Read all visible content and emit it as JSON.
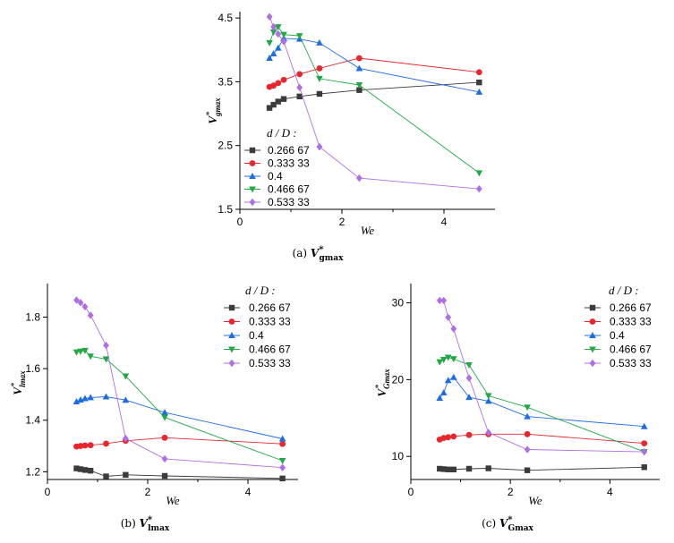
{
  "colors": {
    "s1": "#3b3b3b",
    "s2": "#e8262e",
    "s3": "#1e6de0",
    "s4": "#22a845",
    "s5": "#b06ee6"
  },
  "chart_data": [
    {
      "type": "line",
      "panel": "a",
      "caption": {
        "pre": "(a) ",
        "var": "V",
        "star": "*",
        "sub": "gmax"
      },
      "xlabel": "We",
      "ylabel": {
        "var": "V",
        "star": "*",
        "sub": "gmax"
      },
      "xlim": [
        0,
        5
      ],
      "ylim": [
        1.5,
        4.6
      ],
      "xticks": [
        "0",
        "2",
        "4"
      ],
      "xtick_values": [
        0,
        2,
        4
      ],
      "yticks": [
        "1.5",
        "2.5",
        "3.5",
        "4.5"
      ],
      "ytick_values": [
        1.5,
        2.5,
        3.5,
        4.5
      ],
      "legend_title": "d / D :",
      "legend_placement": "bottom-left",
      "series": [
        {
          "name": "0.266 67",
          "marker": "square",
          "x": [
            0.58,
            0.66,
            0.75,
            0.86,
            1.17,
            1.56,
            2.34,
            4.69
          ],
          "y": [
            3.09,
            3.14,
            3.19,
            3.23,
            3.27,
            3.31,
            3.37,
            3.49
          ]
        },
        {
          "name": "0.333 33",
          "marker": "circle",
          "x": [
            0.58,
            0.66,
            0.75,
            0.86,
            1.17,
            1.56,
            2.34,
            4.69
          ],
          "y": [
            3.42,
            3.44,
            3.48,
            3.53,
            3.62,
            3.71,
            3.87,
            3.65
          ]
        },
        {
          "name": "0.4",
          "marker": "triangle-up",
          "x": [
            0.58,
            0.66,
            0.75,
            0.86,
            1.17,
            1.56,
            2.34,
            4.69
          ],
          "y": [
            3.87,
            3.94,
            4.03,
            4.18,
            4.17,
            4.11,
            3.71,
            3.34
          ]
        },
        {
          "name": "0.466 67",
          "marker": "triangle-down",
          "x": [
            0.58,
            0.66,
            0.75,
            0.86,
            1.17,
            1.56,
            2.34,
            4.69
          ],
          "y": [
            4.11,
            4.28,
            4.36,
            4.24,
            4.22,
            3.55,
            3.45,
            2.07
          ]
        },
        {
          "name": "0.533 33",
          "marker": "diamond",
          "x": [
            0.58,
            0.66,
            0.75,
            0.86,
            1.17,
            1.56,
            2.34,
            4.69
          ],
          "y": [
            4.52,
            4.36,
            4.25,
            4.13,
            3.41,
            2.48,
            1.99,
            1.82
          ]
        }
      ]
    },
    {
      "type": "line",
      "panel": "b",
      "caption": {
        "pre": "(b) ",
        "var": "V",
        "star": "*",
        "sub": "lmax"
      },
      "xlabel": "We",
      "ylabel": {
        "var": "V",
        "star": "*",
        "sub": "lmax"
      },
      "xlim": [
        0,
        5
      ],
      "ylim": [
        1.17,
        1.93
      ],
      "xticks": [
        "0",
        "2",
        "4"
      ],
      "xtick_values": [
        0,
        2,
        4
      ],
      "yticks": [
        "1.2",
        "1.4",
        "1.6",
        "1.8"
      ],
      "ytick_values": [
        1.2,
        1.4,
        1.6,
        1.8
      ],
      "legend_title": "d / D :",
      "legend_placement": "top-right",
      "series": [
        {
          "name": "0.266 67",
          "marker": "square",
          "x": [
            0.58,
            0.66,
            0.75,
            0.86,
            1.17,
            1.56,
            2.34,
            4.69
          ],
          "y": [
            1.213,
            1.21,
            1.207,
            1.204,
            1.182,
            1.188,
            1.184,
            1.174
          ]
        },
        {
          "name": "0.333 33",
          "marker": "circle",
          "x": [
            0.58,
            0.66,
            0.75,
            0.86,
            1.17,
            1.56,
            2.34,
            4.69
          ],
          "y": [
            1.298,
            1.3,
            1.302,
            1.303,
            1.309,
            1.32,
            1.332,
            1.308
          ]
        },
        {
          "name": "0.4",
          "marker": "triangle-up",
          "x": [
            0.58,
            0.66,
            0.75,
            0.86,
            1.17,
            1.56,
            2.34,
            4.69
          ],
          "y": [
            1.472,
            1.479,
            1.484,
            1.488,
            1.491,
            1.478,
            1.43,
            1.328
          ]
        },
        {
          "name": "0.466 67",
          "marker": "triangle-down",
          "x": [
            0.58,
            0.66,
            0.75,
            0.86,
            1.17,
            1.56,
            2.34,
            4.69
          ],
          "y": [
            1.664,
            1.667,
            1.67,
            1.648,
            1.637,
            1.571,
            1.411,
            1.243
          ]
        },
        {
          "name": "0.533 33",
          "marker": "diamond",
          "x": [
            0.58,
            0.66,
            0.75,
            0.86,
            1.17,
            1.56,
            2.34,
            4.69
          ],
          "y": [
            1.866,
            1.856,
            1.84,
            1.807,
            1.69,
            1.329,
            1.25,
            1.216
          ]
        }
      ]
    },
    {
      "type": "line",
      "panel": "c",
      "caption": {
        "pre": "(c) ",
        "var": "V",
        "star": "*",
        "sub": "Gmax"
      },
      "xlabel": "We",
      "ylabel": {
        "var": "V",
        "star": "*",
        "sub": "Gmax"
      },
      "xlim": [
        0,
        5
      ],
      "ylim": [
        7,
        32.5
      ],
      "xticks": [
        "0",
        "2",
        "4"
      ],
      "xtick_values": [
        0,
        2,
        4
      ],
      "yticks": [
        "10",
        "20",
        "30"
      ],
      "ytick_values": [
        10,
        20,
        30
      ],
      "legend_title": "d / D :",
      "legend_placement": "top-right",
      "series": [
        {
          "name": "0.266 67",
          "marker": "square",
          "x": [
            0.58,
            0.66,
            0.75,
            0.86,
            1.17,
            1.56,
            2.34,
            4.69
          ],
          "y": [
            8.4,
            8.35,
            8.3,
            8.3,
            8.4,
            8.45,
            8.2,
            8.6
          ]
        },
        {
          "name": "0.333 33",
          "marker": "circle",
          "x": [
            0.58,
            0.66,
            0.75,
            0.86,
            1.17,
            1.56,
            2.34,
            4.69
          ],
          "y": [
            12.2,
            12.4,
            12.5,
            12.6,
            12.8,
            12.9,
            12.9,
            11.7
          ]
        },
        {
          "name": "0.4",
          "marker": "triangle-up",
          "x": [
            0.58,
            0.66,
            0.75,
            0.86,
            1.17,
            1.56,
            2.34,
            4.69
          ],
          "y": [
            17.6,
            18.3,
            19.9,
            20.3,
            17.7,
            17.2,
            15.2,
            13.9
          ]
        },
        {
          "name": "0.466 67",
          "marker": "triangle-down",
          "x": [
            0.58,
            0.66,
            0.75,
            0.86,
            1.17,
            1.56,
            2.34,
            4.69
          ],
          "y": [
            22.3,
            22.6,
            22.9,
            22.7,
            21.9,
            17.9,
            16.4,
            10.6
          ]
        },
        {
          "name": "0.533 33",
          "marker": "diamond",
          "x": [
            0.58,
            0.66,
            0.75,
            0.86,
            1.17,
            1.56,
            2.34,
            4.69
          ],
          "y": [
            30.3,
            30.3,
            28.1,
            26.6,
            20.2,
            13.1,
            10.9,
            10.6
          ]
        }
      ]
    }
  ]
}
